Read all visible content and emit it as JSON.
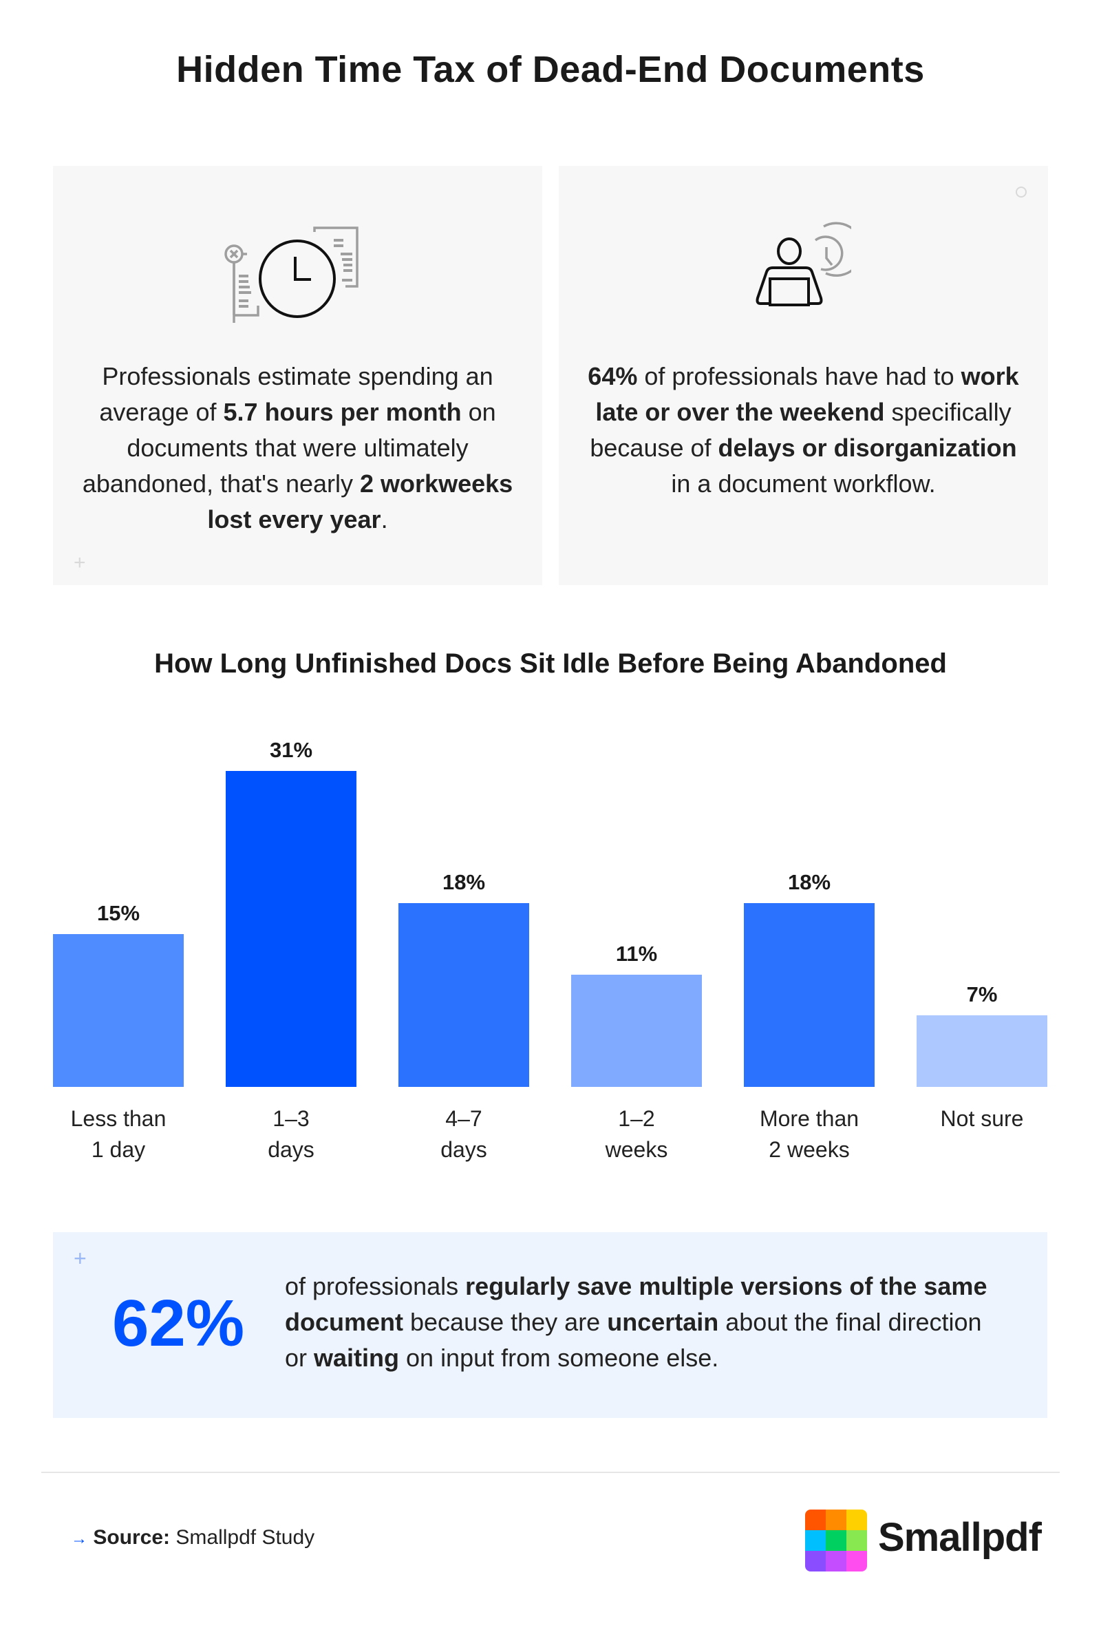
{
  "title": "Hidden Time Tax of Dead-End Documents",
  "cards": [
    {
      "icon": "clock-documents-icon",
      "segments": [
        {
          "t": "Professionals estimate spending an average of ",
          "b": false
        },
        {
          "t": "5.7 hours per month",
          "b": true
        },
        {
          "t": " on documents that were ultimately abandoned, that's nearly ",
          "b": false
        },
        {
          "t": "2 workweeks lost every year",
          "b": true
        },
        {
          "t": ".",
          "b": false
        }
      ]
    },
    {
      "icon": "person-laptop-clock-icon",
      "segments": [
        {
          "t": "64%",
          "b": true
        },
        {
          "t": " of professionals have had to ",
          "b": false
        },
        {
          "t": "work late or over the weekend",
          "b": true
        },
        {
          "t": " specifically because of ",
          "b": false
        },
        {
          "t": "delays or disorganization",
          "b": true
        },
        {
          "t": " in a document workflow.",
          "b": false
        }
      ]
    }
  ],
  "chart_data": {
    "type": "bar",
    "title": "How Long Unfinished Docs Sit Idle Before Being Abandoned",
    "categories": [
      "Less than\n1 day",
      "1–3\ndays",
      "4–7\ndays",
      "1–2\nweeks",
      "More than\n2 weeks",
      "Not sure"
    ],
    "values": [
      15,
      31,
      18,
      11,
      18,
      7
    ],
    "value_labels": [
      "15%",
      "31%",
      "18%",
      "11%",
      "18%",
      "7%"
    ],
    "colors": [
      "#4f8cff",
      "#0052ff",
      "#2b72ff",
      "#80aaff",
      "#2b72ff",
      "#adc8ff"
    ],
    "ylim": [
      0,
      31
    ],
    "grid": false
  },
  "callout": {
    "percent": "62%",
    "segments": [
      {
        "t": "of professionals ",
        "b": false
      },
      {
        "t": "regularly save multiple versions of the same document",
        "b": true
      },
      {
        "t": " because they are ",
        "b": false
      },
      {
        "t": "uncertain",
        "b": true
      },
      {
        "t": " about the final direction or ",
        "b": false
      },
      {
        "t": "waiting",
        "b": true
      },
      {
        "t": " on input from someone else.",
        "b": false
      }
    ]
  },
  "footer": {
    "source_label": "Source:",
    "source_value": "Smallpdf Study",
    "brand": "Smallpdf",
    "logo_colors": [
      "#ff5500",
      "#ff8c00",
      "#ffd000",
      "#00bfff",
      "#00d060",
      "#88e850",
      "#8a4dff",
      "#c34dff",
      "#ff4df0"
    ]
  },
  "accent": "#0052ff"
}
